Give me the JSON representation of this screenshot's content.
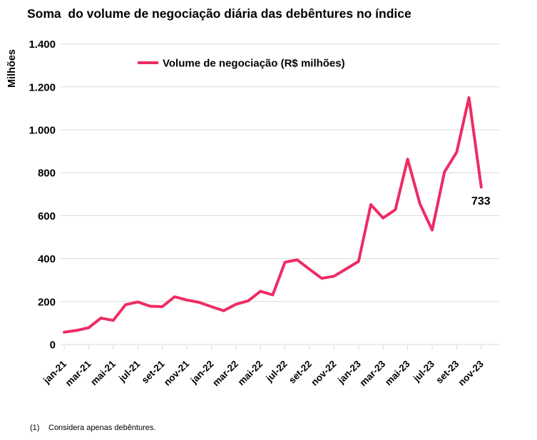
{
  "chart_data": {
    "type": "line",
    "title": "Soma  do volume de negociação diária das debêntures no índice",
    "ylabel": "Milhões",
    "legend": "Volume de negociação (R$ milhões)",
    "legend_position": "top-center",
    "grid": "horizontal",
    "ylim": [
      0,
      1400
    ],
    "y_tick_labels": [
      "1.400",
      "1.200",
      "1.000",
      "800",
      "600",
      "400",
      "200",
      "0"
    ],
    "y_tick_values": [
      1400,
      1200,
      1000,
      800,
      600,
      400,
      200,
      0
    ],
    "x_tick_labels": [
      "jan-21",
      "mar-21",
      "mai-21",
      "jul-21",
      "set-21",
      "nov-21",
      "jan-22",
      "mar-22",
      "mai-22",
      "jul-22",
      "set-22",
      "nov-22",
      "jan-23",
      "mar-23",
      "mai-23",
      "jul-23",
      "set-23",
      "nov-23"
    ],
    "categories": [
      "jan-21",
      "fev-21",
      "mar-21",
      "abr-21",
      "mai-21",
      "jun-21",
      "jul-21",
      "ago-21",
      "set-21",
      "out-21",
      "nov-21",
      "dez-21",
      "jan-22",
      "fev-22",
      "mar-22",
      "abr-22",
      "mai-22",
      "jun-22",
      "jul-22",
      "ago-22",
      "set-22",
      "out-22",
      "nov-22",
      "dez-22",
      "jan-23",
      "fev-23",
      "mar-23",
      "abr-23",
      "mai-23",
      "jun-23",
      "jul-23",
      "ago-23",
      "set-23",
      "out-23",
      "nov-23"
    ],
    "values": [
      57,
      65,
      78,
      123,
      112,
      185,
      198,
      178,
      176,
      222,
      207,
      196,
      176,
      157,
      187,
      203,
      248,
      231,
      383,
      394,
      350,
      308,
      318,
      352,
      387,
      651,
      589,
      628,
      863,
      655,
      533,
      803,
      896,
      1150,
      733
    ],
    "end_label": "733",
    "line_color": "#ED2D64",
    "grid_color": "#D9D9D9",
    "text_color": "#000000",
    "background_color": "#FFFFFF"
  },
  "footnote": {
    "marker": "(1)",
    "text": "Considera apenas debêntures."
  }
}
